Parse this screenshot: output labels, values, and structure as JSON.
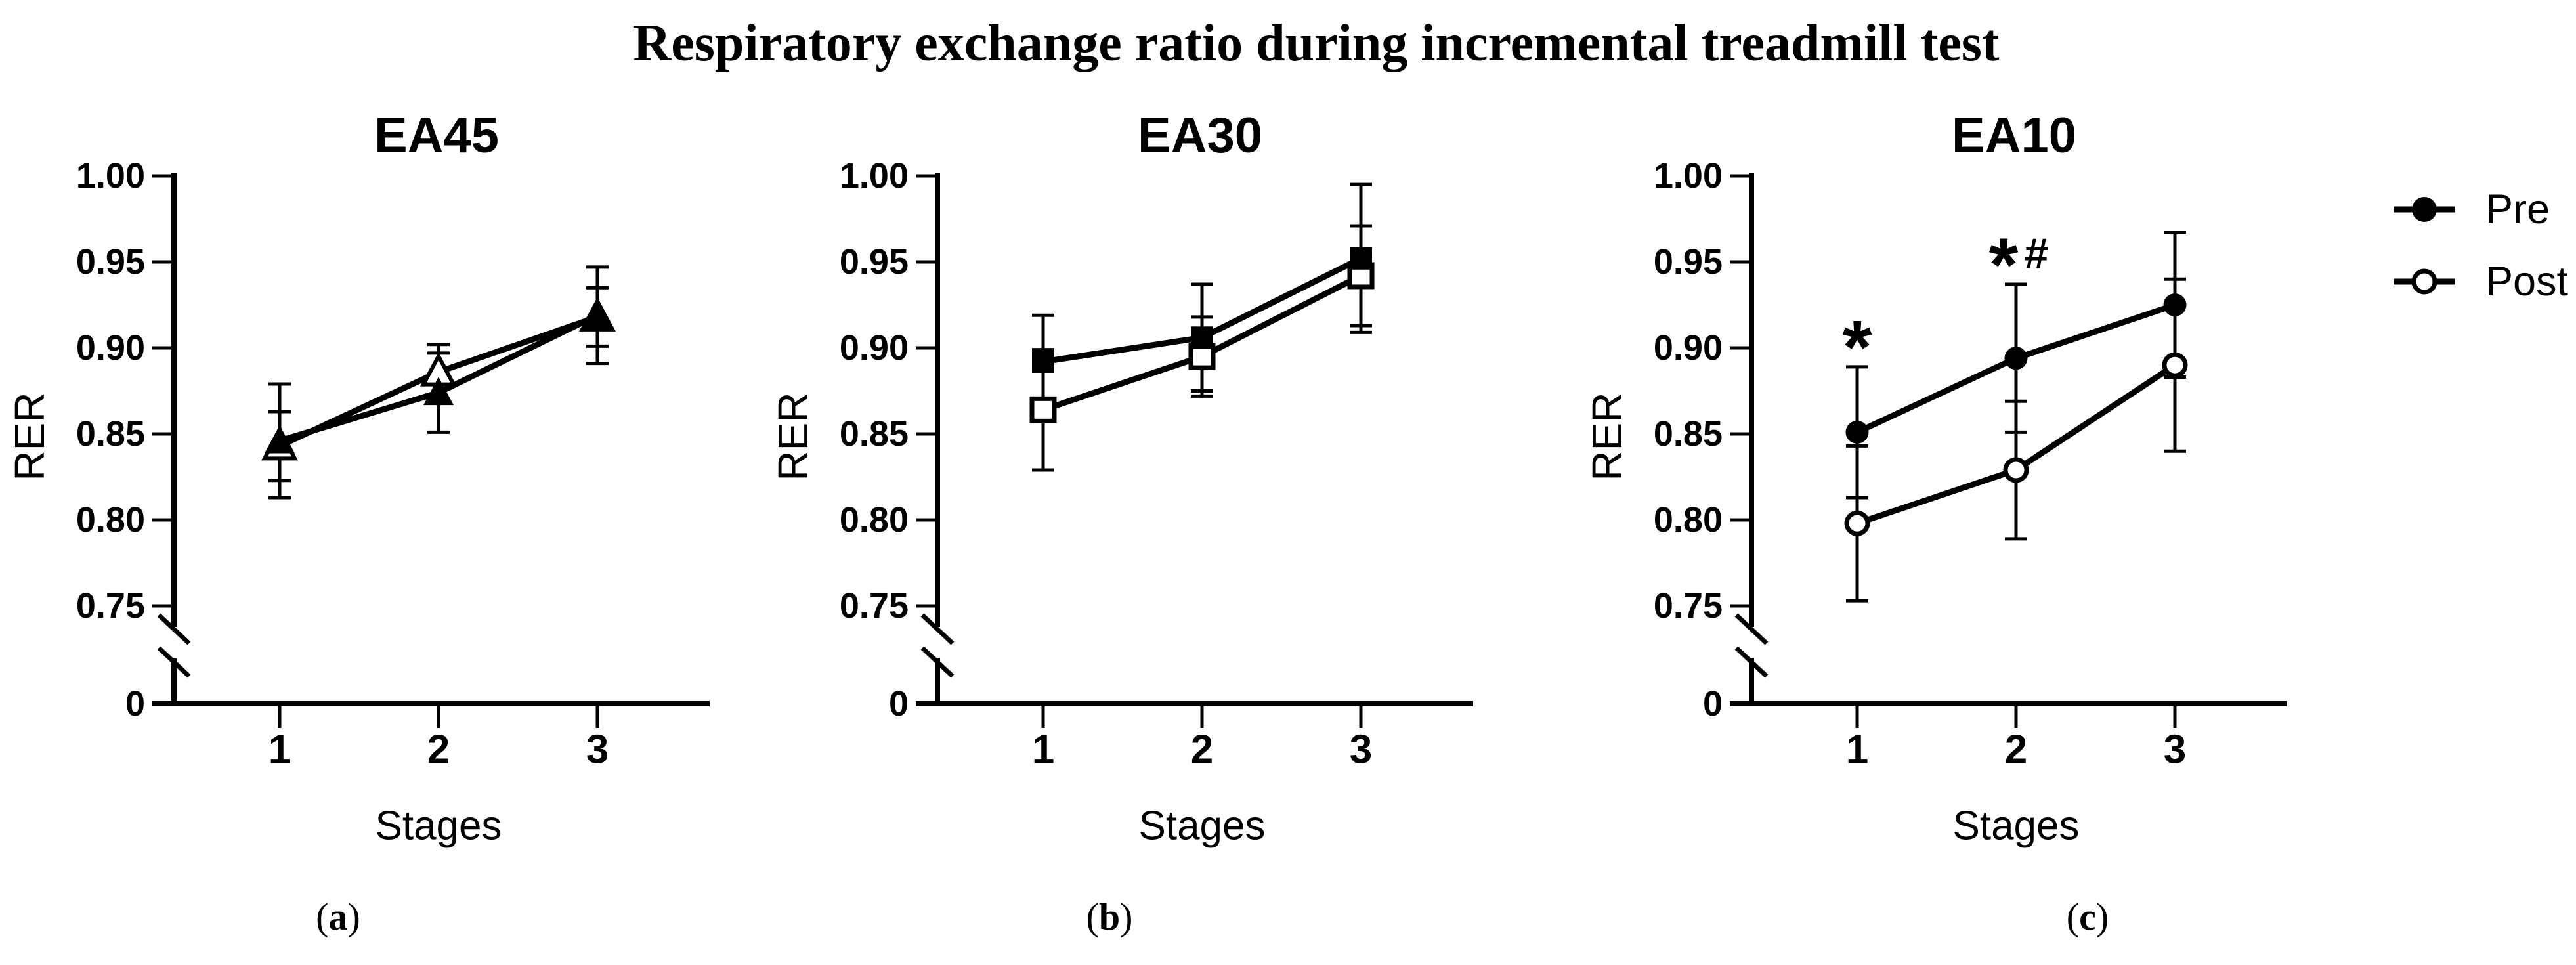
{
  "figure": {
    "title": "Respiratory exchange ratio during incremental treadmill test",
    "background_color": "#ffffff",
    "ink_color": "#000000"
  },
  "legend": {
    "position": "right",
    "items": [
      {
        "label": "Pre",
        "marker": "filled-circle-icon"
      },
      {
        "label": "Post",
        "marker": "open-circle-icon"
      }
    ]
  },
  "captions": [
    {
      "open": "(",
      "letter": "a",
      "close": ")"
    },
    {
      "open": "(",
      "letter": "b",
      "close": ")"
    },
    {
      "open": "(",
      "letter": "c",
      "close": ")"
    }
  ],
  "chart_data": [
    {
      "type": "line",
      "panel_label": "a",
      "title": "EA45",
      "xlabel": "Stages",
      "ylabel": "RER",
      "marker_shape": "triangle",
      "x_categories": [
        "1",
        "2",
        "3"
      ],
      "y_axis": {
        "tick_labels": [
          "1.00",
          "0.95",
          "0.90",
          "0.85",
          "0.80",
          "0.75"
        ],
        "tick_values": [
          1.0,
          0.95,
          0.9,
          0.85,
          0.8,
          0.75
        ],
        "zero_label": "0",
        "axis_break": true,
        "shown_range": [
          0.75,
          1.0
        ]
      },
      "series": [
        {
          "name": "Pre",
          "marker": "filled",
          "values": [
            0.846,
            0.874,
            0.919
          ],
          "errors": [
            0.033,
            0.023,
            0.028
          ]
        },
        {
          "name": "Post",
          "marker": "open",
          "values": [
            0.843,
            0.886,
            0.918
          ],
          "errors": [
            0.02,
            0.016,
            0.017
          ]
        }
      ],
      "annotations": []
    },
    {
      "type": "line",
      "panel_label": "b",
      "title": "EA30",
      "xlabel": "Stages",
      "ylabel": "RER",
      "marker_shape": "square",
      "x_categories": [
        "1",
        "2",
        "3"
      ],
      "y_axis": {
        "tick_labels": [
          "1.00",
          "0.95",
          "0.90",
          "0.85",
          "0.80",
          "0.75"
        ],
        "tick_values": [
          1.0,
          0.95,
          0.9,
          0.85,
          0.8,
          0.75
        ],
        "zero_label": "0",
        "axis_break": true,
        "shown_range": [
          0.75,
          1.0
        ]
      },
      "series": [
        {
          "name": "Pre",
          "marker": "filled",
          "values": [
            0.892,
            0.906,
            0.952
          ],
          "errors": [
            0.027,
            0.031,
            0.043
          ]
        },
        {
          "name": "Post",
          "marker": "open",
          "values": [
            0.864,
            0.895,
            0.942
          ],
          "errors": [
            0.035,
            0.023,
            0.029
          ]
        }
      ],
      "annotations": []
    },
    {
      "type": "line",
      "panel_label": "c",
      "title": "EA10",
      "xlabel": "Stages",
      "ylabel": "RER",
      "marker_shape": "circle",
      "x_categories": [
        "1",
        "2",
        "3"
      ],
      "y_axis": {
        "tick_labels": [
          "1.00",
          "0.95",
          "0.90",
          "0.85",
          "0.80",
          "0.75"
        ],
        "tick_values": [
          1.0,
          0.95,
          0.9,
          0.85,
          0.8,
          0.75
        ],
        "zero_label": "0",
        "axis_break": true,
        "shown_range": [
          0.75,
          1.0
        ]
      },
      "series": [
        {
          "name": "Pre",
          "marker": "filled",
          "values": [
            0.851,
            0.894,
            0.925
          ],
          "errors": [
            0.038,
            0.043,
            0.042
          ]
        },
        {
          "name": "Post",
          "marker": "open",
          "values": [
            0.798,
            0.829,
            0.89
          ],
          "errors": [
            0.045,
            0.04,
            0.05
          ]
        }
      ],
      "annotations": [
        {
          "text": "*",
          "stage_index": 0,
          "value": 0.907
        },
        {
          "text": "*#",
          "stage_index": 1,
          "value": 0.955
        }
      ]
    }
  ]
}
